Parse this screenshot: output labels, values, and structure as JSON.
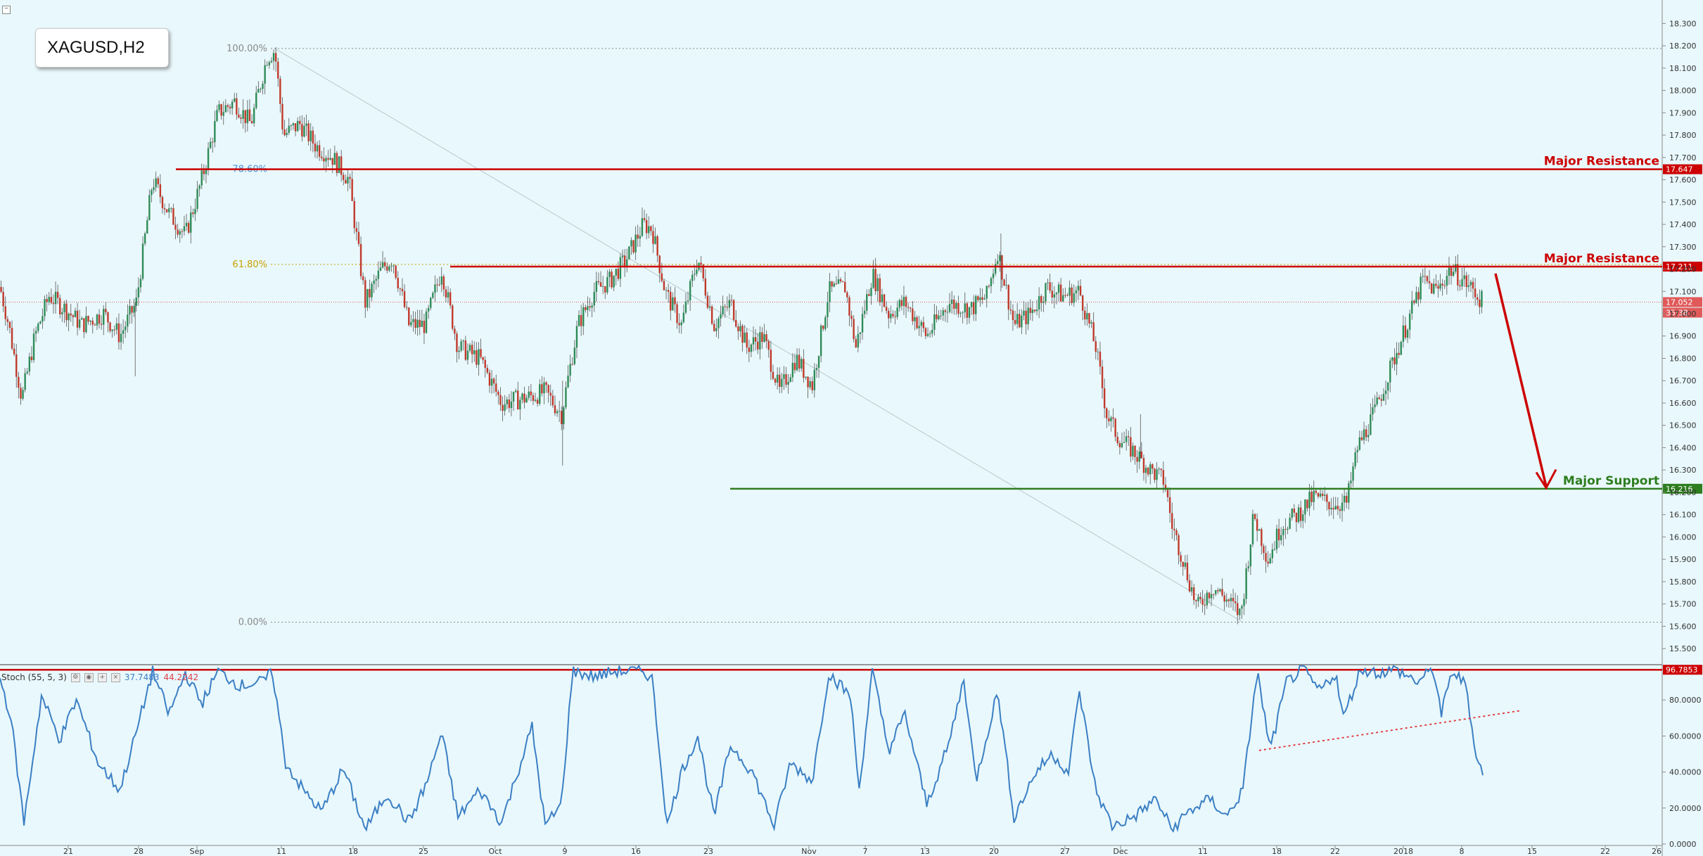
{
  "symbol": "XAGUSD,H2",
  "stoch": {
    "label": "Stoch (55, 5, 3)",
    "k_value": "37.7483",
    "d_value": "44.2242"
  },
  "colors": {
    "bg": "#e9f8fc",
    "up": "#2e8b57",
    "down": "#c0392b",
    "resistance": "#cc0000",
    "support": "#2e7d1f",
    "stoch_line": "#3b7fc4",
    "fib": "#999999"
  },
  "fib_labels": [
    {
      "label": "100.00%",
      "price": 18.188,
      "color": "#888888"
    },
    {
      "label": "78.60%",
      "price": 17.647,
      "color": "#4a90d9"
    },
    {
      "label": "61.80%",
      "price": 17.221,
      "color": "#c8a000"
    },
    {
      "label": "0.00%",
      "price": 15.618,
      "color": "#888888"
    }
  ],
  "levels": [
    {
      "name": "Major Resistance",
      "price": 17.647,
      "tag": "17.647",
      "color": "#cc0000"
    },
    {
      "name": "Major Resistance",
      "price": 17.211,
      "tag": "17.211",
      "color": "#cc0000"
    },
    {
      "name": "Major Support",
      "price": 16.216,
      "tag": "16.216",
      "color": "#2e7d1f"
    }
  ],
  "current_price": {
    "tag": "17.052",
    "timer": "35:38"
  },
  "stoch_level_tag": "96.7853",
  "chart_data": {
    "type": "candlestick",
    "title": "XAGUSD,H2",
    "ylim": [
      15.45,
      18.32
    ],
    "price_ticks": [
      "18.300",
      "18.200",
      "18.100",
      "18.000",
      "17.900",
      "17.800",
      "17.700",
      "17.600",
      "17.500",
      "17.400",
      "17.300",
      "17.200",
      "17.100",
      "17.000",
      "16.900",
      "16.800",
      "16.700",
      "16.600",
      "16.500",
      "16.400",
      "16.300",
      "16.200",
      "16.100",
      "16.000",
      "15.900",
      "15.800",
      "15.700",
      "15.600",
      "15.500"
    ],
    "date_ticks": [
      "21",
      "28",
      "Sep",
      "11",
      "18",
      "25",
      "Oct",
      "9",
      "16",
      "23",
      "Nov",
      "7",
      "13",
      "20",
      "27",
      "Dec",
      "11",
      "18",
      "22",
      "2018",
      "8",
      "15",
      "22",
      "26"
    ],
    "close_path": [
      {
        "x": 0,
        "y": 17.12
      },
      {
        "x": 8,
        "y": 16.95
      },
      {
        "x": 20,
        "y": 16.62
      },
      {
        "x": 32,
        "y": 16.9
      },
      {
        "x": 45,
        "y": 17.08
      },
      {
        "x": 60,
        "y": 17.02
      },
      {
        "x": 75,
        "y": 16.95
      },
      {
        "x": 95,
        "y": 17.0
      },
      {
        "x": 110,
        "y": 16.9
      },
      {
        "x": 125,
        "y": 17.05
      },
      {
        "x": 140,
        "y": 17.6
      },
      {
        "x": 155,
        "y": 17.45
      },
      {
        "x": 170,
        "y": 17.35
      },
      {
        "x": 185,
        "y": 17.6
      },
      {
        "x": 200,
        "y": 17.9
      },
      {
        "x": 215,
        "y": 17.95
      },
      {
        "x": 230,
        "y": 17.85
      },
      {
        "x": 245,
        "y": 18.15
      },
      {
        "x": 252,
        "y": 18.18
      },
      {
        "x": 260,
        "y": 17.8
      },
      {
        "x": 275,
        "y": 17.85
      },
      {
        "x": 290,
        "y": 17.75
      },
      {
        "x": 305,
        "y": 17.7
      },
      {
        "x": 320,
        "y": 17.6
      },
      {
        "x": 335,
        "y": 17.05
      },
      {
        "x": 350,
        "y": 17.2
      },
      {
        "x": 360,
        "y": 17.25
      },
      {
        "x": 375,
        "y": 16.95
      },
      {
        "x": 390,
        "y": 16.95
      },
      {
        "x": 405,
        "y": 17.2
      },
      {
        "x": 420,
        "y": 16.85
      },
      {
        "x": 440,
        "y": 16.8
      },
      {
        "x": 460,
        "y": 16.6
      },
      {
        "x": 480,
        "y": 16.62
      },
      {
        "x": 500,
        "y": 16.65
      },
      {
        "x": 515,
        "y": 16.55
      },
      {
        "x": 530,
        "y": 16.95
      },
      {
        "x": 545,
        "y": 17.1
      },
      {
        "x": 560,
        "y": 17.15
      },
      {
        "x": 575,
        "y": 17.25
      },
      {
        "x": 590,
        "y": 17.4
      },
      {
        "x": 598,
        "y": 17.38
      },
      {
        "x": 610,
        "y": 17.1
      },
      {
        "x": 625,
        "y": 16.95
      },
      {
        "x": 640,
        "y": 17.25
      },
      {
        "x": 655,
        "y": 16.95
      },
      {
        "x": 670,
        "y": 17.05
      },
      {
        "x": 685,
        "y": 16.85
      },
      {
        "x": 700,
        "y": 16.9
      },
      {
        "x": 715,
        "y": 16.65
      },
      {
        "x": 730,
        "y": 16.8
      },
      {
        "x": 745,
        "y": 16.68
      },
      {
        "x": 760,
        "y": 17.1
      },
      {
        "x": 775,
        "y": 17.12
      },
      {
        "x": 785,
        "y": 16.85
      },
      {
        "x": 800,
        "y": 17.18
      },
      {
        "x": 815,
        "y": 17.0
      },
      {
        "x": 830,
        "y": 17.05
      },
      {
        "x": 850,
        "y": 16.9
      },
      {
        "x": 870,
        "y": 17.05
      },
      {
        "x": 890,
        "y": 17.02
      },
      {
        "x": 905,
        "y": 17.08
      },
      {
        "x": 915,
        "y": 17.28
      },
      {
        "x": 930,
        "y": 16.95
      },
      {
        "x": 945,
        "y": 17.0
      },
      {
        "x": 960,
        "y": 17.12
      },
      {
        "x": 975,
        "y": 17.08
      },
      {
        "x": 990,
        "y": 17.1
      },
      {
        "x": 1005,
        "y": 16.85
      },
      {
        "x": 1015,
        "y": 16.55
      },
      {
        "x": 1025,
        "y": 16.45
      },
      {
        "x": 1040,
        "y": 16.38
      },
      {
        "x": 1055,
        "y": 16.3
      },
      {
        "x": 1068,
        "y": 16.25
      },
      {
        "x": 1075,
        "y": 16.05
      },
      {
        "x": 1085,
        "y": 15.9
      },
      {
        "x": 1098,
        "y": 15.68
      },
      {
        "x": 1112,
        "y": 15.78
      },
      {
        "x": 1125,
        "y": 15.72
      },
      {
        "x": 1138,
        "y": 15.65
      },
      {
        "x": 1150,
        "y": 16.1
      },
      {
        "x": 1163,
        "y": 15.9
      },
      {
        "x": 1175,
        "y": 16.05
      },
      {
        "x": 1190,
        "y": 16.1
      },
      {
        "x": 1205,
        "y": 16.18
      },
      {
        "x": 1220,
        "y": 16.15
      },
      {
        "x": 1235,
        "y": 16.15
      },
      {
        "x": 1245,
        "y": 16.4
      },
      {
        "x": 1260,
        "y": 16.55
      },
      {
        "x": 1275,
        "y": 16.75
      },
      {
        "x": 1290,
        "y": 16.95
      },
      {
        "x": 1305,
        "y": 17.15
      },
      {
        "x": 1318,
        "y": 17.1
      },
      {
        "x": 1330,
        "y": 17.2
      },
      {
        "x": 1342,
        "y": 17.15
      },
      {
        "x": 1352,
        "y": 17.1
      },
      {
        "x": 1360,
        "y": 17.05
      }
    ],
    "stoch_ylim": [
      0,
      100
    ],
    "stoch_ticks": [
      "80.0000",
      "60.0000",
      "40.0000",
      "20.0000",
      "0.0000"
    ],
    "stoch_level": 96.7853,
    "stoch_path": [
      {
        "x": 0,
        "y": 92
      },
      {
        "x": 10,
        "y": 70
      },
      {
        "x": 22,
        "y": 12
      },
      {
        "x": 38,
        "y": 82
      },
      {
        "x": 55,
        "y": 58
      },
      {
        "x": 70,
        "y": 80
      },
      {
        "x": 90,
        "y": 45
      },
      {
        "x": 110,
        "y": 30
      },
      {
        "x": 125,
        "y": 62
      },
      {
        "x": 140,
        "y": 96
      },
      {
        "x": 155,
        "y": 72
      },
      {
        "x": 170,
        "y": 95
      },
      {
        "x": 185,
        "y": 78
      },
      {
        "x": 200,
        "y": 96
      },
      {
        "x": 220,
        "y": 88
      },
      {
        "x": 240,
        "y": 90
      },
      {
        "x": 250,
        "y": 95
      },
      {
        "x": 262,
        "y": 45
      },
      {
        "x": 278,
        "y": 30
      },
      {
        "x": 295,
        "y": 18
      },
      {
        "x": 315,
        "y": 42
      },
      {
        "x": 335,
        "y": 8
      },
      {
        "x": 355,
        "y": 28
      },
      {
        "x": 375,
        "y": 12
      },
      {
        "x": 392,
        "y": 35
      },
      {
        "x": 405,
        "y": 62
      },
      {
        "x": 420,
        "y": 15
      },
      {
        "x": 440,
        "y": 30
      },
      {
        "x": 460,
        "y": 12
      },
      {
        "x": 488,
        "y": 65
      },
      {
        "x": 500,
        "y": 10
      },
      {
        "x": 515,
        "y": 22
      },
      {
        "x": 525,
        "y": 96
      },
      {
        "x": 545,
        "y": 93
      },
      {
        "x": 565,
        "y": 96
      },
      {
        "x": 590,
        "y": 96
      },
      {
        "x": 598,
        "y": 92
      },
      {
        "x": 612,
        "y": 10
      },
      {
        "x": 625,
        "y": 40
      },
      {
        "x": 640,
        "y": 60
      },
      {
        "x": 655,
        "y": 15
      },
      {
        "x": 670,
        "y": 55
      },
      {
        "x": 690,
        "y": 40
      },
      {
        "x": 710,
        "y": 10
      },
      {
        "x": 725,
        "y": 45
      },
      {
        "x": 745,
        "y": 35
      },
      {
        "x": 760,
        "y": 95
      },
      {
        "x": 780,
        "y": 82
      },
      {
        "x": 788,
        "y": 30
      },
      {
        "x": 800,
        "y": 96
      },
      {
        "x": 815,
        "y": 52
      },
      {
        "x": 830,
        "y": 72
      },
      {
        "x": 850,
        "y": 22
      },
      {
        "x": 870,
        "y": 55
      },
      {
        "x": 884,
        "y": 92
      },
      {
        "x": 895,
        "y": 35
      },
      {
        "x": 915,
        "y": 85
      },
      {
        "x": 930,
        "y": 15
      },
      {
        "x": 950,
        "y": 40
      },
      {
        "x": 965,
        "y": 50
      },
      {
        "x": 980,
        "y": 40
      },
      {
        "x": 990,
        "y": 85
      },
      {
        "x": 1005,
        "y": 30
      },
      {
        "x": 1020,
        "y": 10
      },
      {
        "x": 1040,
        "y": 15
      },
      {
        "x": 1060,
        "y": 25
      },
      {
        "x": 1075,
        "y": 8
      },
      {
        "x": 1090,
        "y": 18
      },
      {
        "x": 1110,
        "y": 25
      },
      {
        "x": 1125,
        "y": 15
      },
      {
        "x": 1140,
        "y": 30
      },
      {
        "x": 1153,
        "y": 96
      },
      {
        "x": 1165,
        "y": 52
      },
      {
        "x": 1180,
        "y": 90
      },
      {
        "x": 1195,
        "y": 97
      },
      {
        "x": 1210,
        "y": 85
      },
      {
        "x": 1225,
        "y": 95
      },
      {
        "x": 1232,
        "y": 70
      },
      {
        "x": 1248,
        "y": 97
      },
      {
        "x": 1265,
        "y": 95
      },
      {
        "x": 1280,
        "y": 97
      },
      {
        "x": 1300,
        "y": 90
      },
      {
        "x": 1315,
        "y": 97
      },
      {
        "x": 1322,
        "y": 72
      },
      {
        "x": 1332,
        "y": 96
      },
      {
        "x": 1345,
        "y": 88
      },
      {
        "x": 1352,
        "y": 55
      },
      {
        "x": 1360,
        "y": 38
      }
    ]
  }
}
